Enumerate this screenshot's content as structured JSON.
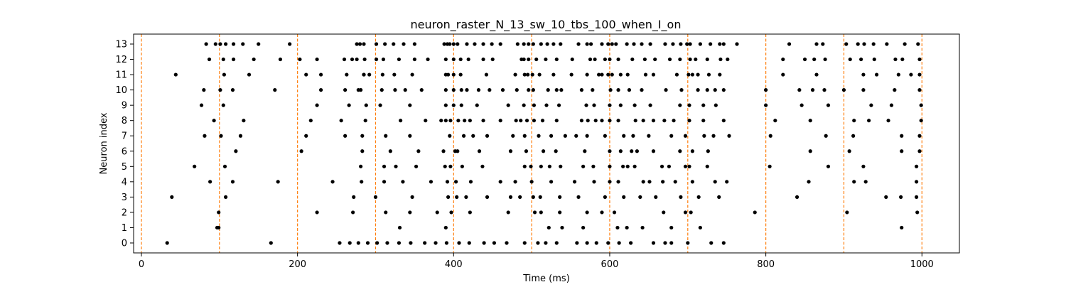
{
  "chart_data": {
    "type": "scatter",
    "title": "neuron_raster_N_13_sw_10_tbs_100_when_I_on",
    "xlabel": "Time (ms)",
    "ylabel": "Neuron index",
    "xlim": [
      -10,
      1048
    ],
    "ylim": [
      -0.65,
      13.65
    ],
    "x_ticks": [
      0,
      200,
      400,
      600,
      800,
      1000
    ],
    "y_ticks": [
      0,
      1,
      2,
      3,
      4,
      5,
      6,
      7,
      8,
      9,
      10,
      11,
      12,
      13
    ],
    "grid": false,
    "legend": "none",
    "colors": {
      "spikes": "#000000",
      "markers": "#ff7f0e"
    },
    "vertical_markers": [
      0,
      100,
      200,
      300,
      400,
      500,
      600,
      700,
      800,
      900,
      1000
    ],
    "series": [
      {
        "neuron": 13,
        "spikes": [
          83,
          95,
          101,
          108,
          118,
          130,
          150,
          190,
          276,
          280,
          285,
          301,
          312,
          323,
          336,
          350,
          388,
          392,
          395,
          400,
          405,
          417,
          427,
          438,
          449,
          460,
          482,
          490,
          496,
          502,
          512,
          520,
          528,
          537,
          560,
          571,
          576,
          590,
          598,
          603,
          608,
          622,
          631,
          641,
          652,
          671,
          681,
          691,
          699,
          703,
          716,
          729,
          741,
          746,
          763,
          830,
          865,
          873,
          903,
          918,
          926,
          938,
          955,
          978,
          995
        ]
      },
      {
        "neuron": 12,
        "spikes": [
          87,
          105,
          118,
          144,
          178,
          203,
          225,
          260,
          270,
          276,
          286,
          301,
          310,
          330,
          350,
          367,
          390,
          400,
          409,
          419,
          438,
          450,
          487,
          490,
          496,
          506,
          518,
          532,
          552,
          575,
          581,
          594,
          600,
          611,
          629,
          645,
          658,
          677,
          690,
          703,
          710,
          725,
          742,
          751,
          822,
          850,
          862,
          876,
          908,
          922,
          939,
          966,
          975,
          997
        ]
      },
      {
        "neuron": 11,
        "spikes": [
          44,
          106,
          138,
          211,
          230,
          263,
          285,
          285,
          292,
          309,
          324,
          347,
          390,
          393,
          400,
          409,
          442,
          479,
          491,
          495,
          501,
          510,
          528,
          551,
          571,
          586,
          590,
          598,
          603,
          614,
          623,
          646,
          656,
          686,
          701,
          706,
          713,
          727,
          741,
          822,
          865,
          925,
          942,
          970,
          986,
          997
        ]
      },
      {
        "neuron": 10,
        "spikes": [
          80,
          101,
          117,
          171,
          230,
          261,
          278,
          281,
          308,
          325,
          338,
          359,
          390,
          400,
          410,
          417,
          432,
          446,
          463,
          481,
          496,
          502,
          521,
          532,
          538,
          564,
          578,
          601,
          611,
          625,
          641,
          672,
          692,
          713,
          725,
          735,
          746,
          800,
          843,
          860,
          875,
          900,
          925,
          965,
          997
        ]
      },
      {
        "neuron": 9,
        "spikes": [
          77,
          105,
          225,
          266,
          288,
          306,
          344,
          390,
          400,
          410,
          430,
          470,
          490,
          503,
          519,
          535,
          570,
          580,
          600,
          614,
          632,
          652,
          690,
          702,
          720,
          736,
          800,
          846,
          880,
          935,
          961,
          999
        ]
      },
      {
        "neuron": 8,
        "spikes": [
          93,
          131,
          217,
          256,
          287,
          332,
          364,
          384,
          390,
          396,
          406,
          414,
          421,
          438,
          460,
          480,
          486,
          494,
          503,
          514,
          532,
          564,
          572,
          582,
          590,
          600,
          611,
          633,
          643,
          656,
          670,
          682,
          702,
          720,
          746,
          812,
          857,
          913,
          932,
          957,
          999
        ]
      },
      {
        "neuron": 7,
        "spikes": [
          81,
          102,
          127,
          211,
          261,
          283,
          313,
          344,
          395,
          413,
          425,
          443,
          476,
          491,
          509,
          525,
          543,
          557,
          571,
          594,
          618,
          630,
          650,
          679,
          697,
          721,
          733,
          753,
          806,
          877,
          912,
          974,
          997
        ]
      },
      {
        "neuron": 6,
        "spikes": [
          121,
          205,
          283,
          319,
          355,
          387,
          402,
          405,
          433,
          473,
          493,
          515,
          531,
          568,
          600,
          614,
          628,
          635,
          656,
          690,
          706,
          726,
          857,
          907,
          974,
          997
        ]
      },
      {
        "neuron": 5,
        "spikes": [
          68,
          107,
          281,
          311,
          326,
          352,
          389,
          396,
          411,
          437,
          491,
          499,
          512,
          523,
          537,
          566,
          579,
          600,
          617,
          623,
          632,
          667,
          676,
          697,
          702,
          725,
          805,
          880,
          925,
          993
        ]
      },
      {
        "neuron": 4,
        "spikes": [
          88,
          117,
          175,
          245,
          282,
          311,
          335,
          371,
          392,
          403,
          422,
          460,
          479,
          500,
          525,
          555,
          580,
          600,
          611,
          643,
          651,
          668,
          684,
          706,
          735,
          750,
          855,
          913,
          928,
          993
        ]
      },
      {
        "neuron": 3,
        "spikes": [
          39,
          108,
          272,
          300,
          347,
          393,
          404,
          416,
          443,
          473,
          485,
          502,
          511,
          536,
          560,
          594,
          618,
          639,
          659,
          691,
          714,
          740,
          840,
          954,
          973,
          993
        ]
      },
      {
        "neuron": 2,
        "spikes": [
          99,
          225,
          271,
          313,
          344,
          379,
          397,
          421,
          470,
          504,
          512,
          536,
          571,
          590,
          606,
          669,
          697,
          704,
          786,
          904,
          994
        ]
      },
      {
        "neuron": 1,
        "spikes": [
          97,
          99,
          331,
          390,
          522,
          539,
          566,
          610,
          622,
          642,
          679,
          716,
          974
        ]
      },
      {
        "neuron": 0,
        "spikes": [
          33,
          166,
          254,
          267,
          278,
          290,
          302,
          315,
          330,
          345,
          363,
          377,
          391,
          407,
          420,
          439,
          452,
          468,
          491,
          508,
          518,
          532,
          558,
          571,
          583,
          598,
          612,
          627,
          656,
          671,
          679,
          700,
          730,
          746
        ]
      }
    ]
  }
}
